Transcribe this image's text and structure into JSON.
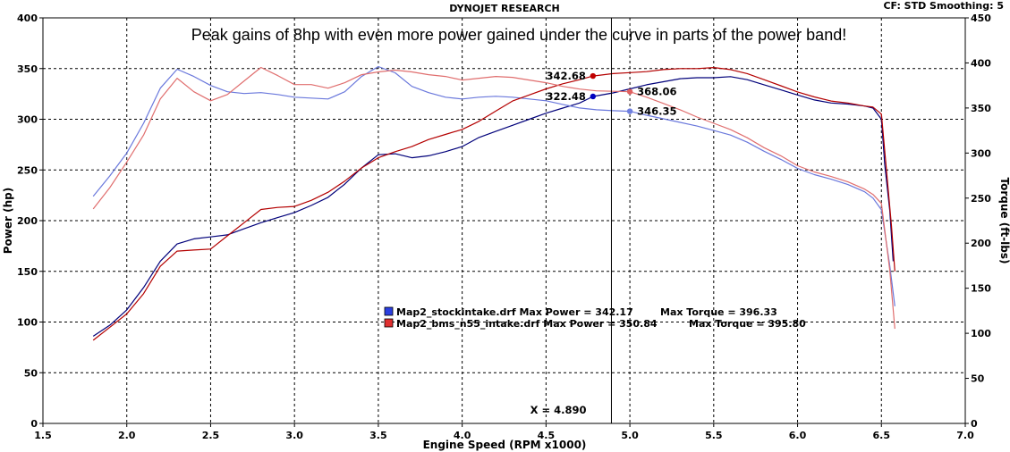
{
  "header": {
    "title": "DYNOJET RESEARCH",
    "settings": "CF: STD  Smoothing: 5",
    "annotation": "Peak gains of 8hp with even more power gained under the curve in parts of the power band!"
  },
  "colors": {
    "stock_power": "#00007a",
    "stock_torque": "#6a78dc",
    "bms_power": "#b40000",
    "bms_torque": "#e06e6e",
    "cursor": "#000000",
    "grid": "#000000"
  },
  "chart_data": {
    "type": "line",
    "xlabel": "Engine Speed (RPM x1000)",
    "ylabel": "Power (hp)",
    "y2label": "Torque (ft-lbs)",
    "xlim": [
      1.5,
      7.0
    ],
    "ylim": [
      0,
      400
    ],
    "y2lim": [
      0,
      450
    ],
    "x_ticks": [
      "1.5",
      "2.0",
      "2.5",
      "3.0",
      "3.5",
      "4.0",
      "4.5",
      "5.0",
      "5.5",
      "6.0",
      "6.5",
      "7.0"
    ],
    "y_ticks": [
      "0",
      "50",
      "100",
      "150",
      "200",
      "250",
      "300",
      "350",
      "400"
    ],
    "y2_ticks": [
      "0",
      "50",
      "100",
      "150",
      "200",
      "250",
      "300",
      "350",
      "400",
      "450"
    ],
    "grid": true,
    "legend_position": "center",
    "legend": [
      {
        "label": "Map2_stockintake.drf Max Power = 342.17",
        "torque": "Max Torque = 396.33",
        "color": "#2b3fe0"
      },
      {
        "label": "Map2_bms_n55_intake.drf Max Power = 350.84",
        "torque": "Max Torque = 395.80",
        "color": "#e03030"
      }
    ],
    "cursor": {
      "x": 4.89,
      "label": "X = 4.890"
    },
    "markers": [
      {
        "label": "342.68",
        "x": 4.78,
        "y": 342.68,
        "axis": "left",
        "color": "#c00000",
        "side": "left"
      },
      {
        "label": "322.48",
        "x": 4.78,
        "y": 322.48,
        "axis": "left",
        "color": "#0000c0",
        "side": "left"
      },
      {
        "label": "368.06",
        "x": 5.0,
        "y": 368.06,
        "axis": "right",
        "color": "#e06060",
        "side": "right"
      },
      {
        "label": "346.35",
        "x": 5.0,
        "y": 346.35,
        "axis": "right",
        "color": "#7080e0",
        "side": "right"
      }
    ],
    "series": [
      {
        "name": "Map2_stockintake.drf",
        "quantity": "power",
        "axis": "left",
        "color": "#00007a",
        "points": [
          [
            1.8,
            86
          ],
          [
            1.9,
            97
          ],
          [
            2.0,
            112
          ],
          [
            2.1,
            134
          ],
          [
            2.2,
            160
          ],
          [
            2.3,
            177
          ],
          [
            2.4,
            182
          ],
          [
            2.5,
            184
          ],
          [
            2.6,
            186
          ],
          [
            2.7,
            192
          ],
          [
            2.8,
            198
          ],
          [
            2.9,
            203
          ],
          [
            3.0,
            208
          ],
          [
            3.1,
            215
          ],
          [
            3.2,
            223
          ],
          [
            3.3,
            236
          ],
          [
            3.4,
            252
          ],
          [
            3.5,
            265
          ],
          [
            3.6,
            266
          ],
          [
            3.7,
            262
          ],
          [
            3.8,
            264
          ],
          [
            3.9,
            268
          ],
          [
            4.0,
            273
          ],
          [
            4.1,
            282
          ],
          [
            4.2,
            288
          ],
          [
            4.3,
            294
          ],
          [
            4.4,
            300
          ],
          [
            4.5,
            306
          ],
          [
            4.6,
            311
          ],
          [
            4.7,
            316
          ],
          [
            4.78,
            322.48
          ],
          [
            4.9,
            326
          ],
          [
            5.0,
            330
          ],
          [
            5.1,
            334
          ],
          [
            5.2,
            337
          ],
          [
            5.3,
            340
          ],
          [
            5.4,
            341
          ],
          [
            5.5,
            341
          ],
          [
            5.6,
            342
          ],
          [
            5.7,
            339
          ],
          [
            5.8,
            334
          ],
          [
            5.9,
            329
          ],
          [
            6.0,
            324
          ],
          [
            6.1,
            319
          ],
          [
            6.2,
            316
          ],
          [
            6.3,
            315
          ],
          [
            6.4,
            313
          ],
          [
            6.45,
            311
          ],
          [
            6.5,
            300
          ],
          [
            6.52,
            255
          ],
          [
            6.55,
            210
          ],
          [
            6.57,
            160
          ]
        ]
      },
      {
        "name": "Map2_stockintake.drf",
        "quantity": "torque",
        "axis": "right",
        "color": "#6a78dc",
        "points": [
          [
            1.8,
            252
          ],
          [
            1.9,
            275
          ],
          [
            2.0,
            300
          ],
          [
            2.1,
            333
          ],
          [
            2.2,
            372
          ],
          [
            2.3,
            393
          ],
          [
            2.4,
            385
          ],
          [
            2.5,
            375
          ],
          [
            2.6,
            368
          ],
          [
            2.7,
            366
          ],
          [
            2.8,
            367
          ],
          [
            2.9,
            365
          ],
          [
            3.0,
            362
          ],
          [
            3.1,
            361
          ],
          [
            3.2,
            360
          ],
          [
            3.3,
            368
          ],
          [
            3.4,
            385
          ],
          [
            3.5,
            396
          ],
          [
            3.6,
            389
          ],
          [
            3.7,
            374
          ],
          [
            3.8,
            367
          ],
          [
            3.9,
            362
          ],
          [
            4.0,
            360
          ],
          [
            4.1,
            362
          ],
          [
            4.2,
            363
          ],
          [
            4.3,
            362
          ],
          [
            4.4,
            360
          ],
          [
            4.5,
            358
          ],
          [
            4.6,
            354
          ],
          [
            4.7,
            350
          ],
          [
            4.8,
            348
          ],
          [
            4.9,
            347
          ],
          [
            5.0,
            346.35
          ],
          [
            5.1,
            342
          ],
          [
            5.2,
            338
          ],
          [
            5.3,
            334
          ],
          [
            5.4,
            330
          ],
          [
            5.5,
            325
          ],
          [
            5.6,
            320
          ],
          [
            5.7,
            312
          ],
          [
            5.8,
            302
          ],
          [
            5.9,
            293
          ],
          [
            6.0,
            283
          ],
          [
            6.1,
            276
          ],
          [
            6.2,
            271
          ],
          [
            6.3,
            265
          ],
          [
            6.4,
            257
          ],
          [
            6.45,
            250
          ],
          [
            6.5,
            237
          ],
          [
            6.55,
            175
          ],
          [
            6.58,
            130
          ]
        ]
      },
      {
        "name": "Map2_bms_n55_intake.drf",
        "quantity": "power",
        "axis": "left",
        "color": "#b40000",
        "points": [
          [
            1.8,
            82
          ],
          [
            1.9,
            95
          ],
          [
            2.0,
            108
          ],
          [
            2.1,
            128
          ],
          [
            2.2,
            155
          ],
          [
            2.3,
            170
          ],
          [
            2.4,
            171
          ],
          [
            2.5,
            172
          ],
          [
            2.6,
            185
          ],
          [
            2.7,
            198
          ],
          [
            2.8,
            211
          ],
          [
            2.9,
            213
          ],
          [
            3.0,
            214
          ],
          [
            3.1,
            220
          ],
          [
            3.2,
            228
          ],
          [
            3.3,
            239
          ],
          [
            3.4,
            252
          ],
          [
            3.5,
            262
          ],
          [
            3.6,
            268
          ],
          [
            3.7,
            273
          ],
          [
            3.8,
            280
          ],
          [
            3.9,
            285
          ],
          [
            4.0,
            290
          ],
          [
            4.1,
            298
          ],
          [
            4.2,
            308
          ],
          [
            4.3,
            318
          ],
          [
            4.4,
            324
          ],
          [
            4.5,
            330
          ],
          [
            4.6,
            335
          ],
          [
            4.7,
            339
          ],
          [
            4.78,
            342.68
          ],
          [
            4.9,
            345
          ],
          [
            5.0,
            346
          ],
          [
            5.1,
            347
          ],
          [
            5.2,
            349
          ],
          [
            5.3,
            350
          ],
          [
            5.4,
            350
          ],
          [
            5.5,
            351
          ],
          [
            5.6,
            349
          ],
          [
            5.7,
            345
          ],
          [
            5.8,
            339
          ],
          [
            5.9,
            333
          ],
          [
            6.0,
            327
          ],
          [
            6.1,
            322
          ],
          [
            6.2,
            318
          ],
          [
            6.3,
            316
          ],
          [
            6.4,
            313
          ],
          [
            6.45,
            312
          ],
          [
            6.5,
            305
          ],
          [
            6.53,
            250
          ],
          [
            6.56,
            195
          ],
          [
            6.58,
            150
          ]
        ]
      },
      {
        "name": "Map2_bms_n55_intake.drf",
        "quantity": "torque",
        "axis": "right",
        "color": "#e06e6e",
        "points": [
          [
            1.8,
            238
          ],
          [
            1.9,
            262
          ],
          [
            2.0,
            290
          ],
          [
            2.1,
            320
          ],
          [
            2.2,
            360
          ],
          [
            2.3,
            383
          ],
          [
            2.4,
            368
          ],
          [
            2.5,
            358
          ],
          [
            2.6,
            365
          ],
          [
            2.7,
            380
          ],
          [
            2.8,
            395
          ],
          [
            2.9,
            386
          ],
          [
            3.0,
            376
          ],
          [
            3.1,
            376
          ],
          [
            3.2,
            372
          ],
          [
            3.3,
            378
          ],
          [
            3.4,
            387
          ],
          [
            3.5,
            390
          ],
          [
            3.6,
            392
          ],
          [
            3.7,
            390
          ],
          [
            3.8,
            387
          ],
          [
            3.9,
            385
          ],
          [
            4.0,
            381
          ],
          [
            4.1,
            383
          ],
          [
            4.2,
            385
          ],
          [
            4.3,
            384
          ],
          [
            4.4,
            381
          ],
          [
            4.5,
            378
          ],
          [
            4.6,
            374
          ],
          [
            4.7,
            371
          ],
          [
            4.8,
            369
          ],
          [
            4.9,
            368.5
          ],
          [
            5.0,
            368.06
          ],
          [
            5.1,
            362
          ],
          [
            5.2,
            355
          ],
          [
            5.3,
            348
          ],
          [
            5.4,
            340
          ],
          [
            5.5,
            333
          ],
          [
            5.6,
            326
          ],
          [
            5.7,
            317
          ],
          [
            5.8,
            306
          ],
          [
            5.9,
            297
          ],
          [
            6.0,
            286
          ],
          [
            6.1,
            279
          ],
          [
            6.2,
            274
          ],
          [
            6.3,
            268
          ],
          [
            6.4,
            260
          ],
          [
            6.45,
            254
          ],
          [
            6.5,
            244
          ],
          [
            6.55,
            170
          ],
          [
            6.58,
            105
          ]
        ]
      }
    ]
  }
}
